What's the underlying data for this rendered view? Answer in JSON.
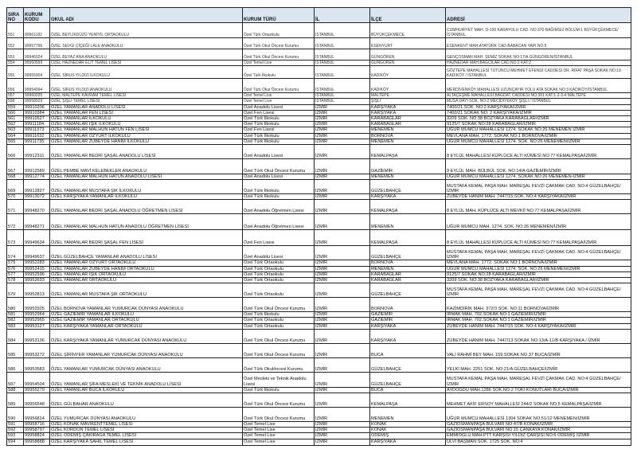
{
  "headers": [
    "SIRA NO",
    "KURUM KODU",
    "OKUL ADI",
    "KURUM TÜRÜ",
    "İL",
    "İLÇE",
    "ADRESİ"
  ],
  "rows": [
    [
      "551",
      "99961182",
      "ÖZEL BEYLİKDÜZÜ YENİYIL ORTAOKULU",
      "Özel Türk Ortaokulu",
      "İSTANBUL",
      "BÜYÜKÇEKMECE",
      "CUMHURİYET MAH. D-100 KARAYOLU CAD. NO:370 BAĞIMSIZ BÖLÜM:1 BÜYÜKÇEKMECE/İSTANBUL"
    ],
    [
      "552",
      "99957796",
      "ÖZEL SEVGİ ÇİÇEĞİ LALE ANAOKULU",
      "Özel Türk Okul Öncesi Kurumu",
      "İSTANBUL",
      "ESENYURT",
      "ESENKENT MAH.ATATÜRK CAD.BABACAN YAPI NO:5"
    ],
    [
      "553",
      "99946024",
      "ÖZEL BEYAZ ANA ANAOKULU",
      "Özel Türk Okul Öncesi Kurumu",
      "İSTANBUL",
      "GÜNGÖREN",
      "GENÇOSMAN MAH. SEMİZ SOKAK NO:17/A GÜNGÖREN/İSTANBUL"
    ],
    [
      "554",
      "99960599",
      "ÖZEL HAZNEDAR ELİT TEMEL LİSESİ",
      "Özel Temel Lise",
      "İSTANBUL",
      "GÜNGÖREN",
      "HAZNEDAR MAH.BAĞCILAR CAD.NO:2 KAT:2"
    ],
    [
      "555",
      "99955904",
      "ÖZEL SİRUS YILDIZI İLKOKULU",
      "Özel Türk İlkokulu",
      "İSTANBUL",
      "KADIKÖY",
      "GÖZTEPE MAHALLESİ TÜTÜNCÜ MEHMET EFENDİ CADDESİ DR. RIFAT PAŞA SOKAK NO:19 KADIKÖY / İSTANBUL"
    ],
    [
      "556",
      "99954094",
      "ÖZEL SİRUS YILDIZI ANAOKULU",
      "Özel Türk Okul Öncesi Kurumu",
      "İSTANBUL",
      "KADIKÖY",
      "MERDİVENKÖY MAHALLESİ UZUNÇAYIR YOLU ATA SOKAK NO:3 KADIKÖY/İSTANBUL"
    ],
    [
      "557",
      "99960035",
      "ÖZEL MALTEPE KAVRAM TEMEL LİSESİ",
      "Özel Temel Lise",
      "İSTANBUL",
      "MALTEPE",
      "ALTAÇEŞME MAHALLESİ BAĞDAT CADDESİ NO:391 KAT:1-2-3-4 MALTEPE"
    ],
    [
      "558",
      "99958929",
      "ÖZEL ŞİŞLİ TEMEL LİSESİ",
      "Özel Temel Lise",
      "İSTANBUL",
      "ŞİŞLİ",
      "MUSA DAYI SOK. NO:2 MECİDİYEKÖY ŞİŞLİ / İSTANBUL"
    ],
    [
      "559",
      "99910206",
      "ÖZEL YAMANLAR ANADOLU LİSESİ",
      "Özel Anadolu Lisesi",
      "İZMİR",
      "KARŞIYAKA",
      "7400/21 SOK. NO:2 KARŞIYAKA/İZMİR"
    ],
    [
      "560",
      "99910384",
      "ÖZEL YAMANLAR FEN LİSESİ",
      "Özel Fen Lisesi",
      "İZMİR",
      "KARŞIYAKA",
      "7400/21 SOKAK NO: 2 KARŞIYAKA/İZMİR"
    ],
    [
      "561",
      "99910527",
      "ÖZEL YAMANLAR İLKOKULU",
      "Özel Türk İlkokulu",
      "İZMİR",
      "KARABAĞLAR",
      "3209 SOK. NO:38 BOZYAKA KARABAĞLAR/İZMİR"
    ],
    [
      "562",
      "99911184",
      "ÖZEL YAMANLAR IŞIK İLKOKULU",
      "Özel Türk İlkokulu",
      "İZMİR",
      "KARABAĞLAR",
      "9125/7 SOKAK NO:28 KARABAĞLAR/İZMİR"
    ],
    [
      "563",
      "99911373",
      "ÖZEL YAMANLAR MALHUN HATUN FEN LİSESİ",
      "Özel Fen Lisesi",
      "İZMİR",
      "MENEMEN",
      "UĞUR MUMCU MAHALLESİ 1274. SOKAK NO:26 MENEMEN İZMİR"
    ],
    [
      "564",
      "99911632",
      "ÖZEL YAMANLAR ÖZYURT İLKOKULU",
      "Özel Türk İlkokulu",
      "İZMİR",
      "BORNOVA",
      "MEVLANA MAH. 1772. SOKAK NO:1 BORNOVA/İZMİR"
    ],
    [
      "565",
      "99911735",
      "ÖZEL YAMANLAR ZÜBEYDE HANIM İLKOKULU",
      "Özel Türk İlkokulu",
      "İZMİR",
      "MENEMEN",
      "UĞUR MUMCU MAHALLESİ 1274. SOK. NO:26 MENEMEN/İZMİR"
    ],
    [
      "566",
      "99912311",
      "ÖZEL YAMANLAR BEDRİ ŞAŞAL ANADOLU LİSESİ",
      "Özel Anadolu Lisesi",
      "İZMİR",
      "KEMALPAŞA",
      "8 EYLÜL MAHALLESİ KÜPLÜCE ALTI KÜMESİ NO:77 KEMALPAŞA/İZMİR"
    ],
    [
      "567",
      "99912589",
      "ÖZEL PEMBE MAVİ KELEBEKLER ANAOKULU",
      "Özel Türk Okul Öncesi Kurumu",
      "İZMİR",
      "GAZİEMİR",
      "9 EYLÜL MAH. BÜLBÜL SOK. NO:14/A GAZİEMİR/İZMİR"
    ],
    [
      "568",
      "99912774",
      "ÖZEL YAMANLAR MALHUN HATUN ANADOLU LİSESİ",
      "Özel Anadolu Lisesi",
      "İZMİR",
      "MENEMEN",
      "UĞUR MUMCU MAHALLESİ 1274. SOKAK NO:26 MENEMEN-İZMİR"
    ],
    [
      "569",
      "99912827",
      "ÖZEL YAMANLAR MUSTAFA ŞIK İLKOKULU",
      "Özel Türk İlkokulu",
      "İZMİR",
      "GÜZELBAHÇE",
      "MUSTAFA KEMAL PAŞA MAH. MAREŞAL FEVZİ ÇAKMAK CAD. NO:4 GÜZELBAHÇE/İZMİR"
    ],
    [
      "570",
      "99913072",
      "ÖZEL KARŞIYAKA YAMANLAR İLKOKULU",
      "Özel Türk İlkokulu",
      "İZMİR",
      "KARŞIYAKA",
      "ZÜBEYDE HANIM MAH. 7447/15 SOK. NO:4 KARŞIYAKA/İZMİR"
    ],
    [
      "571",
      "99948270",
      "ÖZEL YAMANLAR BEDRİ ŞAŞAL ANADOLU ÖĞRETMEN LİSESİ",
      "Özel Anadolu Öğretmen Lisesi",
      "İZMİR",
      "KEMALPAŞA",
      "8 EYLÜL MAH. KÜPLÜCE ALTI MEVKİİ NO:77 KEMALPAŞA/İZMİR"
    ],
    [
      "572",
      "99948271",
      "ÖZEL YAMANLAR MALHUN HATUN ANADOLU ÖĞRETMEN LİSESİ",
      "Özel Anadolu Öğretmen Lisesi",
      "İZMİR",
      "MENEMEN",
      "UĞUR MUMCU MAH. 1274. SOK. NO:26 MENEMEN/İZMİR"
    ],
    [
      "573",
      "99949634",
      "ÖZEL YAMANLAR BEDRİ ŞAŞAL FEN LİSESİ",
      "Özel Fen Lisesi",
      "İZMİR",
      "KEMALPAŞA",
      "8 EYLÜL MAHALLESİ KÜPLÜCE ALTI KÜMESİ NO:77 KEMALPAŞA/İZMİR"
    ],
    [
      "574",
      "99949637",
      "ÖZEL GÜZELBAHÇE YAMANLAR ANADOLU LİSESİ",
      "Özel Anadolu Lisesi",
      "İZMİR",
      "GÜZELBAHÇE",
      "MUSTAFA KEMAL PAŞA MAH. MAREŞAL FEVZİ ÇAKMAK CAD. NO:4 GÜZELBAHÇE/İZMİR"
    ],
    [
      "575",
      "99952283",
      "ÖZEL YAMANLAR ÖZYURT ORTAOKULU",
      "Özel Türk Ortaokulu",
      "İZMİR",
      "BORNOVA",
      "MEVLANA MAH. 1772. SOKAK NO:1 BORNOVA/İZMİR"
    ],
    [
      "576",
      "99952415",
      "ÖZEL YAMANLAR ZÜBEYDE HANIM ORTAOKULU",
      "Özel Türk Ortaokulu",
      "İZMİR",
      "MENEMEN",
      "UĞUR MUMCU MAHALLESİ 1274. SOK. NO:26 MENEMEN/İZMİR"
    ],
    [
      "577",
      "99952596",
      "ÖZEL YAMANLAR IŞIK ORTAOKULU",
      "Özel Türk Ortaokulu",
      "İZMİR",
      "KARABAĞLAR",
      "9125/7 SOKAK NO:28 KARABAĞLAR/İZMİR"
    ],
    [
      "578",
      "99952693",
      "ÖZEL YAMANLAR ORTAOKULU",
      "Özel Türk Ortaokulu",
      "İZMİR",
      "KARABAĞLAR",
      "3209 SOK. NO:38 BOZYAKA KARABAĞLAR/İZMİR"
    ],
    [
      "579",
      "99952813",
      "ÖZEL YAMANLAR MUSTAFA ŞIK ORTAOKULU",
      "Özel Türk Ortaokulu",
      "İZMİR",
      "GÜZELBAHÇE",
      "MUSTAFA KEMAL PAŞA MAH. MAREŞAL FEVZİ ÇAKMAK CAD. NO:4 GÜZELBAHÇE/İZMİR"
    ],
    [
      "580",
      "99952925",
      "ÖZEL BORNOVA YAMANLAR YUMURCAK DÜNYASI ANAOKULU",
      "Özel Türk Okul Öncesi Kurumu",
      "İZMİR",
      "BORNOVA",
      "KAZIMDİRİK MAH. 372/3 SOK. NO:11 BORNOVA/İZMİR"
    ],
    [
      "581",
      "99952964",
      "ÖZEL GAZİEMİR YAMANLAR İLKOKULU",
      "Özel Türk İlkokulu",
      "İZMİR",
      "GAZİEMİR",
      "IRMAK MAH. 702.SOKAK NO:1 GAZİEMİR/İZMİR"
    ],
    [
      "582",
      "99952965",
      "ÖZEL GAZİEMİR YAMANLAR ORTAOKULU",
      "Özel Türk Ortaokulu",
      "İZMİR",
      "GAZİEMİR",
      "IRMAK MAH. 702.SOKAK NO:1 GAZİEMİR/İZMİR"
    ],
    [
      "583",
      "99953127",
      "ÖZEL KARŞIYAKA YAMANLAR ORTAOKULU",
      "Özel Türk Ortaokulu",
      "İZMİR",
      "KARŞIYAKA",
      "ZÜBEYDE HANIM MAH. 7447/15 SOK. NO:4 KARŞIYAKA/İZMİR"
    ],
    [
      "584",
      "99953136",
      "ÖZEL KARŞIYAKA YAMANLAR YUMURCAK DÜNYASI ANAOKULU",
      "Özel Türk Okul Öncesi Kurumu",
      "İZMİR",
      "KARŞIYAKA",
      "ZÜBEYDE HANIM MAH. 7447/13 SOKAK NO:13/A-11/B KARŞIYAKA / İZMİR"
    ],
    [
      "585",
      "99953272",
      "ÖZEL ŞİRİNYER YAMANLAR YUMURCAK DÜNYASI ANAOKULU",
      "Özel Türk Okul Öncesi Kurumu",
      "İZMİR",
      "BUCA",
      "VALİ RAHMİ BEY MAH. 159.SOKAK NO.37 BUCA/İZMİR"
    ],
    [
      "586",
      "99953583",
      "ÖZEL YAMANLAR YUMURCAK DÜNYASI ANAOKULU",
      "Özel Türk Okulöncesi Kurumu",
      "İZMİR",
      "GÜZELBAHÇE",
      "YELKİ MAH. 2251 SOK. NO:21/A GÜZELBAHÇE/İZMİR"
    ],
    [
      "587",
      "99954504",
      "ÖZEL YAMANLAR ŞİFA MESLEKİ VE TEKNİK ANADOLU LİSESİ",
      "Özel Mesleki ve Teknik Anadolu Lisesi",
      "İZMİR",
      "GÜZELBAHÇE",
      "MUSTAFA KEMAL PAŞA MAH. MAREŞAL FEVZİ ÇAKMAK CAD. NO:4 GÜZELBAHÇE/İZMİR"
    ],
    [
      "588",
      "99955270",
      "ÖZEL YAMANLAR BUCA İLKOKULU",
      "Özel Türk İlkokulu",
      "İZMİR",
      "BUCA",
      "AYDOĞDU MAH.1286 SOK.NO:2 TOKİ KONUTLARI BUCA/İZMİR"
    ],
    [
      "589",
      "99956548",
      "ÖZEL GÜLBAHAR ANAOKULU",
      "Özel Türk Okul Öncesi Kurumu",
      "İZMİR",
      "KEMALPAŞA",
      "MEHMET AKİF ERSOY MAHALLESİ 244/2 SOKAK NO:5 KEMALPAŞA/İZMİR"
    ],
    [
      "590",
      "99956814",
      "ÖZEL YUMURCAK DÜNYASI ANAOKULU",
      "Özel Türk Okul Öncesi Kurumu",
      "İZMİR",
      "MENEMEN",
      "UĞUR MUMCU MAHALLESİ 1304 SOKAK NO:51/12 MENEMEN/İZMİR"
    ],
    [
      "591",
      "99958716",
      "ÖZEL KONAK MAVİKENTTEMEL LİSESİ",
      "Özel Temel Lise",
      "İZMİR",
      "KONAK",
      "GAZİOSMANPAŞA BULVARI NO:47/B KONAK/İZMİR"
    ],
    [
      "592",
      "99958797",
      "ÖZEL KORDON TEMEL LİSESİ",
      "Özel Temel Lise",
      "İZMİR",
      "KONAK",
      "GAZİOSMANPAŞA BULVARI NO:15 ÇANKAYA KONAK/İZMİR"
    ],
    [
      "593",
      "99958824",
      "ÖZEL ÖDEMİŞ ÇAKIRAĞA TEMEL LİSESİ",
      "Özel Temel Lise",
      "İZMİR",
      "ÖDEMİŞ",
      "EMMİOĞLU MAH.PTT KARŞISI YILDIZ ÇARŞISI NO:6 ÖDEMİŞ /İZMİR"
    ],
    [
      "594",
      "99958888",
      "ÖZEL KARŞIYAKA SAHİL TEMEL LİSESİ",
      "Özel Temel Lise",
      "İZMİR",
      "KARŞIYAKA",
      "ULVİ BAŞMAN SOK. 1725 SOK. NO:4"
    ]
  ]
}
